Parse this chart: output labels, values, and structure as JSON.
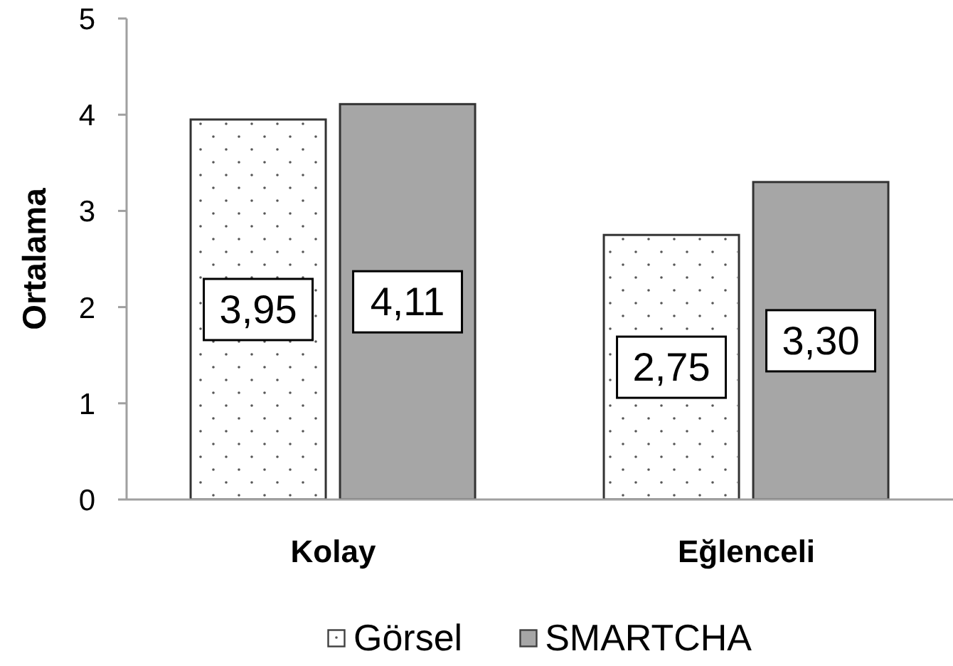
{
  "chart_data": {
    "type": "bar",
    "ylabel": "Ortalama",
    "categories": [
      "Kolay",
      "Eğlenceli"
    ],
    "series": [
      {
        "name": "Görsel",
        "color": "#ffffff",
        "values": [
          3.95,
          2.75
        ],
        "value_labels": [
          "3,95",
          "2,75"
        ]
      },
      {
        "name": "SMARTCHA",
        "color": "#a6a6a6",
        "values": [
          4.11,
          3.3
        ],
        "value_labels": [
          "4,11",
          "3,30"
        ]
      }
    ],
    "ylim": [
      0,
      5
    ],
    "yticks": [
      0,
      1,
      2,
      3,
      4,
      5
    ],
    "legend": "bottom"
  }
}
